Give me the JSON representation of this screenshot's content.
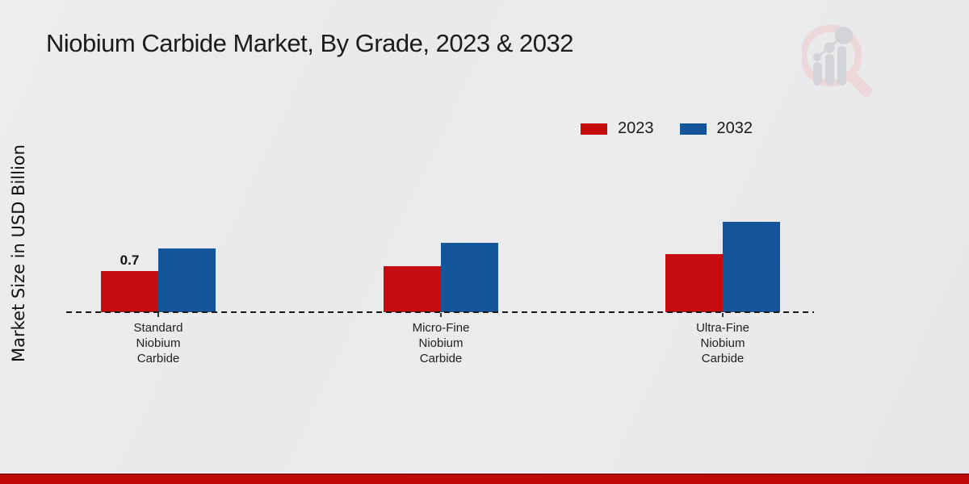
{
  "title": "Niobium Carbide Market, By Grade, 2023 & 2032",
  "y_axis_label": "Market Size in USD Billion",
  "legend": {
    "items": [
      {
        "label": "2023",
        "color": "#c50d10"
      },
      {
        "label": "2032",
        "color": "#15559a"
      }
    ]
  },
  "branding": {
    "logo_name": "market-research-future-logo",
    "bottom_bar_color": "#c00909",
    "logo_ring_color": "#ecd8da",
    "logo_bar_color": "#d2d4d8"
  },
  "chart_data": {
    "type": "bar",
    "title": "Niobium Carbide Market, By Grade, 2023 & 2032",
    "xlabel": "",
    "ylabel": "Market Size in USD Billion",
    "categories": [
      "Standard\nNiobium\nCarbide",
      "Micro-Fine\nNiobium\nCarbide",
      "Ultra-Fine\nNiobium\nCarbide"
    ],
    "series": [
      {
        "name": "2023",
        "color": "#c50d10",
        "values": [
          0.7,
          0.78,
          0.98
        ],
        "data_labels": [
          "0.7",
          null,
          null
        ]
      },
      {
        "name": "2032",
        "color": "#15559a",
        "values": [
          1.08,
          1.18,
          1.54
        ],
        "data_labels": [
          null,
          null,
          null
        ]
      }
    ],
    "ylim": [
      0,
      1.7
    ],
    "grid": false,
    "legend_position": "top-right",
    "baseline_style": "dashed",
    "y_axis_ticks_visible": false
  }
}
